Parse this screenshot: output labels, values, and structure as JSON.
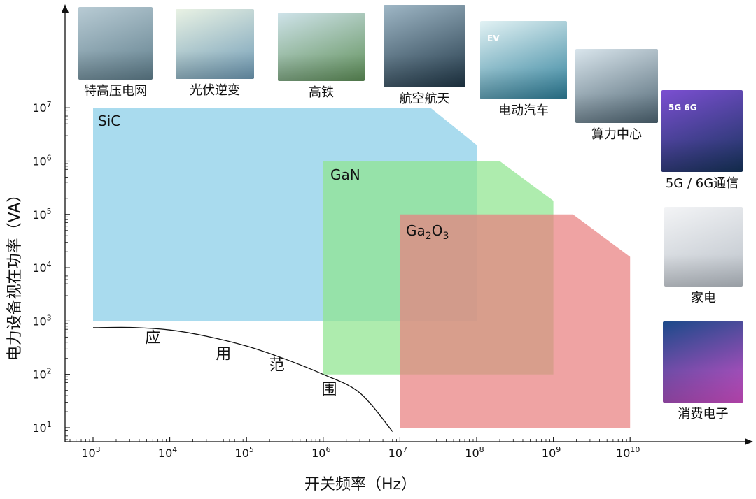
{
  "chart_data": {
    "type": "area",
    "x_scale": "log",
    "y_scale": "log",
    "xlabel": "开关频率（Hz）",
    "ylabel": "电力设备视在功率（VA）",
    "x_ticks": [
      {
        "value": 1000,
        "mantissa": "10",
        "exp": "3"
      },
      {
        "value": 10000,
        "mantissa": "10",
        "exp": "4"
      },
      {
        "value": 100000,
        "mantissa": "10",
        "exp": "5"
      },
      {
        "value": 1000000,
        "mantissa": "10",
        "exp": "6"
      },
      {
        "value": 10000000,
        "mantissa": "10",
        "exp": "7"
      },
      {
        "value": 100000000,
        "mantissa": "10",
        "exp": "8"
      },
      {
        "value": 1000000000,
        "mantissa": "10",
        "exp": "9"
      },
      {
        "value": 10000000000,
        "mantissa": "10",
        "exp": "10"
      }
    ],
    "y_ticks": [
      {
        "value": 10,
        "mantissa": "10",
        "exp": "1"
      },
      {
        "value": 100,
        "mantissa": "10",
        "exp": "2"
      },
      {
        "value": 1000,
        "mantissa": "10",
        "exp": "3"
      },
      {
        "value": 10000,
        "mantissa": "10",
        "exp": "4"
      },
      {
        "value": 100000,
        "mantissa": "10",
        "exp": "5"
      },
      {
        "value": 1000000,
        "mantissa": "10",
        "exp": "6"
      },
      {
        "value": 10000000,
        "mantissa": "10",
        "exp": "7"
      }
    ],
    "regions": [
      {
        "name": "SiC",
        "label_main": "SiC",
        "label_sub": "",
        "label_tail": "",
        "color": "#8ccfe8",
        "opacity": 0.75,
        "polygon": [
          [
            1000,
            1000
          ],
          [
            1000,
            10000000
          ],
          [
            25000000,
            10000000
          ],
          [
            100000000,
            2000000
          ],
          [
            100000000,
            1000
          ]
        ]
      },
      {
        "name": "GaN",
        "label_main": "GaN",
        "label_sub": "",
        "label_tail": "",
        "color": "#8fe58f",
        "opacity": 0.72,
        "polygon": [
          [
            1000000,
            100
          ],
          [
            1000000,
            1000000
          ],
          [
            200000000,
            1000000
          ],
          [
            1000000000,
            180000
          ],
          [
            1000000000,
            100
          ]
        ]
      },
      {
        "name": "Ga2O3",
        "label_main": "Ga",
        "label_sub": "2",
        "label_tail": "O",
        "label_sub2": "3",
        "color": "#e98080",
        "opacity": 0.72,
        "polygon": [
          [
            10000000,
            10
          ],
          [
            10000000,
            100000
          ],
          [
            1800000000,
            100000
          ],
          [
            10000000000,
            16000
          ],
          [
            10000000000,
            10
          ]
        ]
      }
    ],
    "boundary_curve": {
      "points": [
        [
          1000,
          750
        ],
        [
          3000,
          760
        ],
        [
          10000,
          680
        ],
        [
          30000,
          520
        ],
        [
          100000,
          340
        ],
        [
          300000,
          200
        ],
        [
          1000000,
          100
        ],
        [
          3000000,
          45
        ],
        [
          8000000,
          8.5
        ]
      ],
      "label_chars": [
        {
          "ch": "应",
          "x": 6000,
          "y": 390
        },
        {
          "ch": "用",
          "x": 50000,
          "y": 195
        },
        {
          "ch": "范",
          "x": 250000,
          "y": 120
        },
        {
          "ch": "围",
          "x": 1200000,
          "y": 42
        }
      ]
    }
  },
  "applications": [
    {
      "label": "特高压电网",
      "theme": "grid-tower-icon",
      "c1": "#b8cbd4",
      "c2": "#5f7e8c",
      "badge": ""
    },
    {
      "label": "光伏逆变",
      "theme": "solar-inverter-icon",
      "c1": "#e9f2e4",
      "c2": "#6f9bb6",
      "badge": ""
    },
    {
      "label": "高铁",
      "theme": "high-speed-train-icon",
      "c1": "#cfe3ea",
      "c2": "#5e8f58",
      "badge": ""
    },
    {
      "label": "航空航天",
      "theme": "aerospace-icon",
      "c1": "#9fb7c6",
      "c2": "#1f3646",
      "badge": ""
    },
    {
      "label": "电动汽车",
      "theme": "electric-car-icon",
      "c1": "#e2f2f4",
      "c2": "#2d7f9a",
      "badge": "EV"
    },
    {
      "label": "算力中心",
      "theme": "data-center-icon",
      "c1": "#d9e5ec",
      "c2": "#4d6472",
      "badge": ""
    },
    {
      "label": "5G / 6G通信",
      "theme": "telecom-5g-6g-icon",
      "c1": "#7b4fd1",
      "c2": "#15335a",
      "badge": "5G   6G"
    },
    {
      "label": "家电",
      "theme": "home-appliance-icon",
      "c1": "#f3f4f6",
      "c2": "#b9c0c8",
      "badge": ""
    },
    {
      "label": "消费电子",
      "theme": "consumer-electronics-icon",
      "c1": "#1b4a8a",
      "c2": "#d34fc9",
      "badge": ""
    }
  ]
}
